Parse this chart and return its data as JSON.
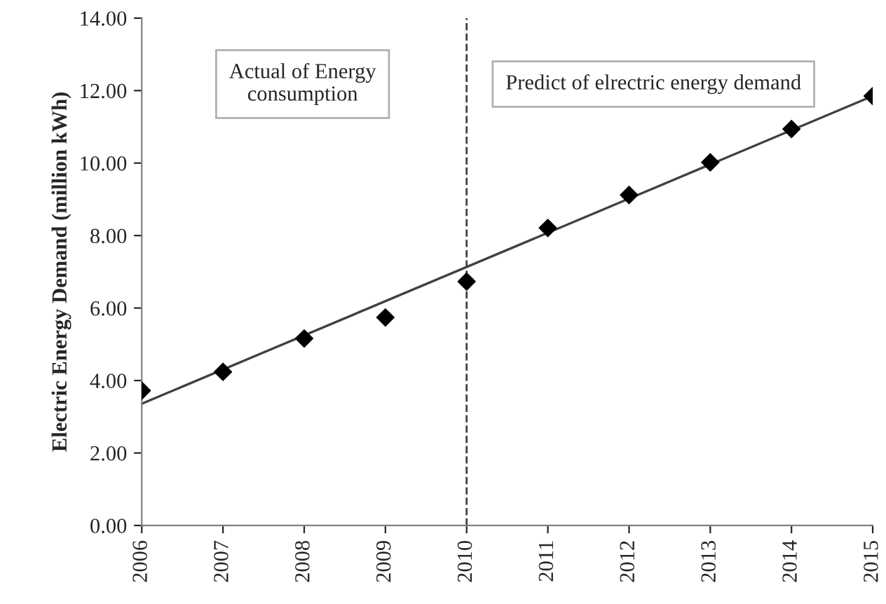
{
  "chart_data": {
    "type": "scatter",
    "ylabel": "Electric Energy Demand (million kWh)",
    "x": [
      2006,
      2007,
      2008,
      2009,
      2010,
      2011,
      2012,
      2013,
      2014,
      2015
    ],
    "series": [
      {
        "color": "#000000",
        "marker": "diamond",
        "values": [
          3.72,
          4.24,
          5.16,
          5.74,
          6.73,
          8.21,
          9.12,
          10.02,
          10.94,
          11.85
        ]
      },
      {
        "type": "line",
        "color": "#404040",
        "marker": "none",
        "line_style": "solid",
        "x": [
          2006,
          2015
        ],
        "values": [
          3.36,
          11.85
        ]
      }
    ],
    "xlim": [
      2006,
      2015
    ],
    "xticks": [
      2006,
      2007,
      2008,
      2009,
      2010,
      2011,
      2012,
      2013,
      2014,
      2015
    ],
    "ylim": [
      0,
      14
    ],
    "yticks": [
      {
        "value": 0,
        "label": "0.00"
      },
      {
        "value": 2,
        "label": "2.00"
      },
      {
        "value": 4,
        "label": "4.00"
      },
      {
        "value": 6,
        "label": "6.00"
      },
      {
        "value": 8,
        "label": "8.00"
      },
      {
        "value": 10,
        "label": "10.00"
      },
      {
        "value": 12,
        "label": "12.00"
      },
      {
        "value": 14,
        "label": "14.00"
      }
    ],
    "ref_lines": [
      {
        "axis": "x",
        "value": 2010,
        "color": "#404040",
        "line_style": "dashed"
      }
    ],
    "annotations": [
      "Actual of Energy\nconsumption",
      "Predict of elrectric energy demand"
    ],
    "grid": false,
    "legend": false
  }
}
